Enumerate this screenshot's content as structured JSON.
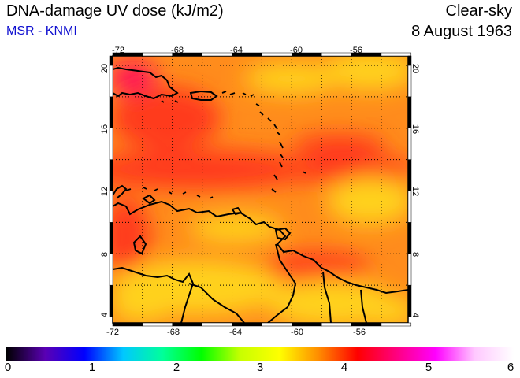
{
  "header": {
    "title": "DNA-damage UV dose (kJ/m2)",
    "subtitle": "MSR - KNMI",
    "sky_condition": "Clear-sky",
    "date": "8 August 1963"
  },
  "map": {
    "lon_ticks": [
      "-72",
      "-68",
      "-64",
      "-60",
      "-56"
    ],
    "lat_ticks": [
      "20",
      "16",
      "12",
      "8",
      "4"
    ],
    "lon_range": [
      -72,
      -52.2
    ],
    "lat_range": [
      3.6,
      20.6
    ]
  },
  "colorbar": {
    "labels": [
      "0",
      "1",
      "2",
      "3",
      "4",
      "5",
      "6"
    ],
    "range": [
      0,
      6
    ],
    "colors": [
      "#000000",
      "#5a00b4",
      "#0000ff",
      "#00c8ff",
      "#00ff9a",
      "#00ff00",
      "#c8ff00",
      "#ffff00",
      "#ff8c00",
      "#ff0000",
      "#ff0080",
      "#ff00ff",
      "#ffc8ff",
      "#ffffff"
    ]
  },
  "field_colors": {
    "yellow": "#ffd21e",
    "orange": "#ff8c1c",
    "red": "#ff3a1a",
    "magenta": "#ff0a5a"
  }
}
